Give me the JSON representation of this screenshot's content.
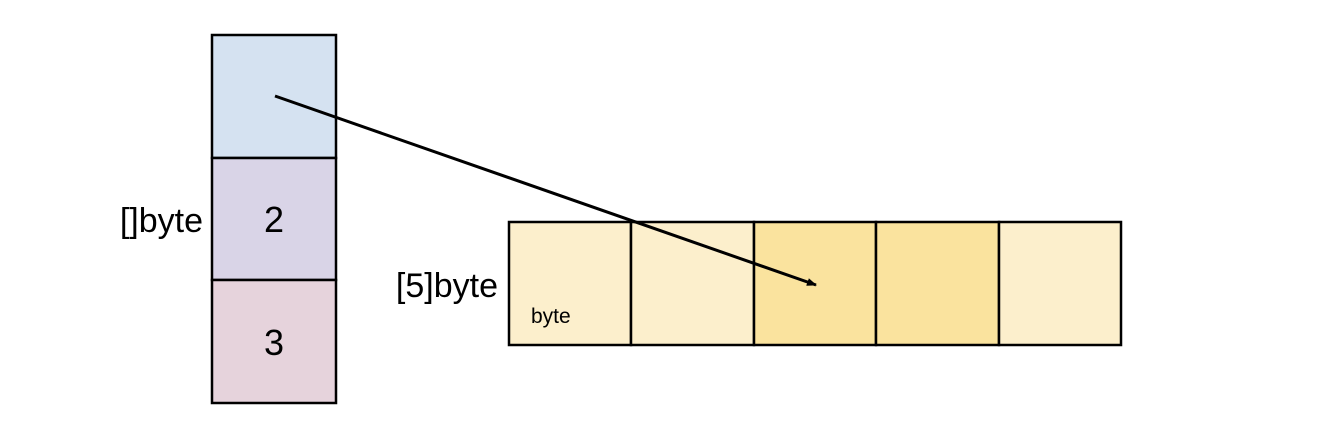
{
  "slice": {
    "label": "[]byte",
    "cells": [
      {
        "text": "",
        "role": "pointer",
        "color": "#d5e2f1"
      },
      {
        "text": "2",
        "role": "length",
        "color": "#d9d4e7"
      },
      {
        "text": "3",
        "role": "capacity",
        "color": "#e6d3dc"
      }
    ]
  },
  "array": {
    "label": "[5]byte",
    "element_label": "byte",
    "cells": [
      {
        "color": "#fcefcc"
      },
      {
        "color": "#fcefcc"
      },
      {
        "color": "#fae39e"
      },
      {
        "color": "#fae39e"
      },
      {
        "color": "#fcefcc"
      }
    ]
  },
  "arrow": {
    "from": "slice-pointer-cell",
    "to": "array-cell-3",
    "color": "#000000"
  },
  "stroke_color": "#000000"
}
